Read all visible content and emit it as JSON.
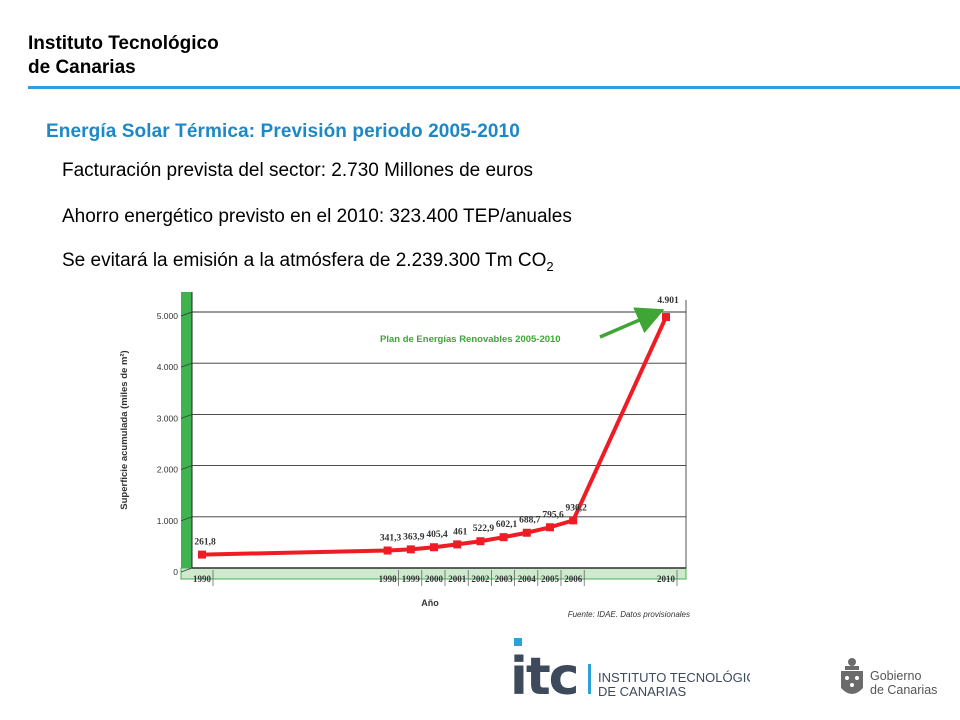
{
  "header": {
    "org_line1": "Instituto Tecnológico",
    "org_line2": "de Canarias",
    "rule_color": "#2e9fd8"
  },
  "slide": {
    "subtitle": "Energía Solar Térmica: Previsión periodo 2005-2010",
    "subtitle_color": "#1d88c8",
    "bullets": [
      "Facturación prevista del sector: 2.730 Millones de euros",
      "Ahorro energético previsto en el 2010: 323.400 TEP/anuales",
      "Se evitará la emisión a la atmósfera de 2.239.300 Tm CO"
    ],
    "co2_subscript": "2"
  },
  "chart_data": {
    "type": "line",
    "categories": [
      "1990",
      "1998",
      "1999",
      "2000",
      "2001",
      "2002",
      "2003",
      "2004",
      "2005",
      "2006",
      "2010"
    ],
    "values": [
      261.8,
      341.3,
      363.9,
      405.4,
      461,
      522.9,
      602.1,
      688.7,
      795.6,
      930.2,
      4901
    ],
    "data_labels": [
      "261,8",
      "341,3",
      "363,9",
      "405,4",
      "461",
      "522,9",
      "602,1",
      "688,7",
      "795,6",
      "930,2",
      "4.901"
    ],
    "xlabel": "Año",
    "ylabel": "Superficie acumulada (miles de m²)",
    "ylim": [
      0,
      5000
    ],
    "yticks": [
      0,
      1000,
      2000,
      3000,
      4000,
      5000
    ],
    "ytick_labels": [
      "0",
      "1.000",
      "2.000",
      "3.000",
      "4.000",
      "5.000"
    ],
    "grid": true,
    "line_color": "#ee1c24",
    "wall_color": "#3fb34f",
    "annotation": "Plan de Energías Renovables 2005-2010",
    "annotation_color": "#3fa535",
    "source": "Fuente: IDAE. Datos provisionales"
  },
  "footer": {
    "itc_logo_text": "itc",
    "itc_name_line1": "INSTITUTO TECNOLÓGICO",
    "itc_name_line2": "DE CANARIAS",
    "gob_line1": "Gobierno",
    "gob_line2": "de Canarias",
    "logo_color": "#3d4a5c",
    "dot_color": "#2e9fd8"
  }
}
